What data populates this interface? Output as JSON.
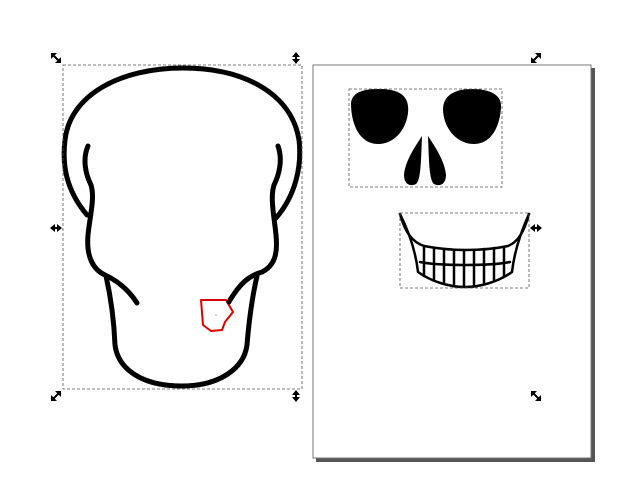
{
  "canvas": {
    "background": "#ffffff",
    "ink_color": "#000000",
    "page_border_color": "#777777",
    "page_shadow_color": "#555555",
    "selection_dash_color": "#555555",
    "selected_node_path_color": "#dd0000"
  },
  "objects": {
    "skull_outline": {
      "icon": "skull-outline-path",
      "selected": true
    },
    "eyes_and_nose": {
      "icon": "eyes-nose-group",
      "selected": true
    },
    "teeth": {
      "icon": "teeth-jaw-group",
      "selected": true
    },
    "red_path": {
      "icon": "red-node-path"
    }
  },
  "selection_handles": {
    "corner": "diagonal-double-arrow-icon",
    "side_vertical": "vertical-double-arrow-icon",
    "side_horizontal": "horizontal-double-arrow-icon"
  }
}
